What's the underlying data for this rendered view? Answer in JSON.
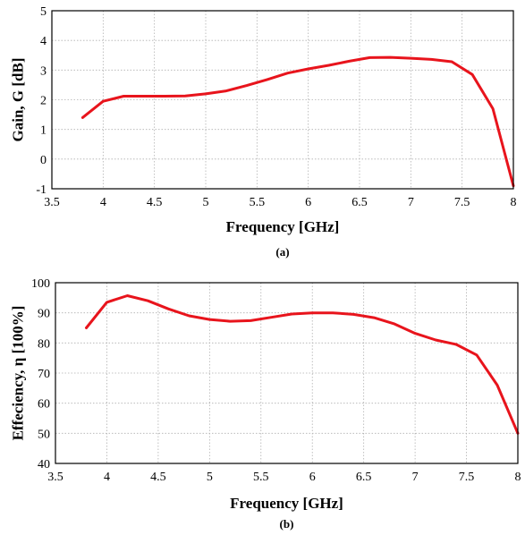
{
  "chart_data": [
    {
      "type": "line",
      "panel_label": "(a)",
      "xlabel": "Frequency [GHz]",
      "ylabel": "Gain, G [dB]",
      "xlim": [
        3.5,
        8
      ],
      "ylim": [
        -1,
        5
      ],
      "xticks": [
        "3.5",
        "4",
        "4.5",
        "5",
        "5.5",
        "6",
        "6.5",
        "7",
        "7.5",
        "8"
      ],
      "yticks": [
        "-1",
        "0",
        "1",
        "2",
        "3",
        "4",
        "5"
      ],
      "grid": true,
      "color": "#e8141c",
      "series": [
        {
          "x": [
            3.8,
            4.0,
            4.2,
            4.4,
            4.6,
            4.8,
            5.0,
            5.2,
            5.4,
            5.6,
            5.8,
            6.0,
            6.2,
            6.4,
            6.6,
            6.8,
            7.0,
            7.2,
            7.4,
            7.6,
            7.8,
            8.0
          ],
          "y": [
            1.4,
            1.95,
            2.12,
            2.12,
            2.12,
            2.13,
            2.2,
            2.3,
            2.48,
            2.68,
            2.9,
            3.04,
            3.16,
            3.3,
            3.42,
            3.43,
            3.4,
            3.36,
            3.28,
            2.85,
            1.7,
            -0.9
          ]
        }
      ]
    },
    {
      "type": "line",
      "panel_label": "(b)",
      "xlabel": "Frequency [GHz]",
      "ylabel": "Effeciency, η [100%]",
      "xlim": [
        3.5,
        8
      ],
      "ylim": [
        40,
        100
      ],
      "xticks": [
        "3.5",
        "4",
        "4.5",
        "5",
        "5.5",
        "6",
        "6.5",
        "7",
        "7.5",
        "8"
      ],
      "yticks": [
        "40",
        "50",
        "60",
        "70",
        "80",
        "90",
        "100"
      ],
      "grid": true,
      "color": "#e8141c",
      "series": [
        {
          "x": [
            3.8,
            4.0,
            4.2,
            4.4,
            4.6,
            4.8,
            5.0,
            5.2,
            5.4,
            5.6,
            5.8,
            6.0,
            6.2,
            6.4,
            6.6,
            6.8,
            7.0,
            7.2,
            7.4,
            7.6,
            7.8,
            8.0
          ],
          "y": [
            85,
            93.5,
            95.7,
            94,
            91.3,
            89,
            87.8,
            87.2,
            87.4,
            88.5,
            89.6,
            90,
            90,
            89.5,
            88.4,
            86.3,
            83.2,
            81,
            79.5,
            76,
            66,
            50
          ]
        }
      ]
    }
  ]
}
